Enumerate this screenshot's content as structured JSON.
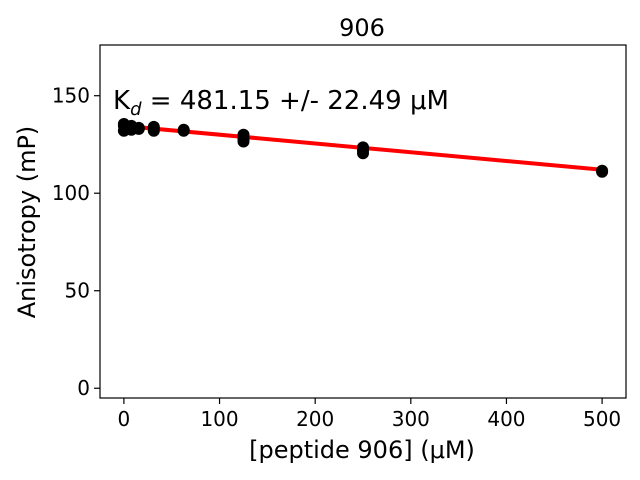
{
  "chart_data": {
    "type": "scatter",
    "title": "906",
    "xlabel": "[peptide 906] (μM)",
    "ylabel": "Anisotropy (mP)",
    "xlim": [
      -25,
      525
    ],
    "ylim": [
      -5,
      176
    ],
    "xticks": [
      0,
      100,
      200,
      300,
      400,
      500
    ],
    "yticks": [
      0,
      50,
      100,
      150
    ],
    "grid": false,
    "annotation": {
      "prefix": "K",
      "subscript": "d",
      "text": " = 481.15 +/- 22.49 μM"
    },
    "series": [
      {
        "kind": "points",
        "color": "#000000",
        "x": [
          0,
          0,
          0,
          3.9,
          3.9,
          7.8,
          7.8,
          15.6,
          15.6,
          31.25,
          31.25,
          31.25,
          62.5,
          62.5,
          125,
          125,
          125,
          250,
          250,
          250,
          500,
          500
        ],
        "y": [
          132,
          134.5,
          135.5,
          133,
          134,
          132.5,
          134.5,
          133.5,
          133,
          132,
          133.5,
          134,
          132,
          132.5,
          126.5,
          128,
          130,
          120.5,
          122,
          123.5,
          111,
          111.5
        ]
      },
      {
        "kind": "fit",
        "color": "#ff0000",
        "x": [
          0,
          500
        ],
        "y": [
          134.5,
          112
        ]
      }
    ]
  }
}
